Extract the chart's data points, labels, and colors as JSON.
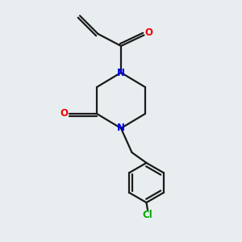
{
  "bg_color": "#e8edf0",
  "bond_color": "#1a1a1a",
  "N_color": "#0000ee",
  "O_color": "#ee0000",
  "Cl_color": "#00aa00",
  "bond_width": 1.6,
  "figsize": [
    3.0,
    3.0
  ],
  "dpi": 100,
  "xlim": [
    0,
    10
  ],
  "ylim": [
    0,
    10
  ]
}
